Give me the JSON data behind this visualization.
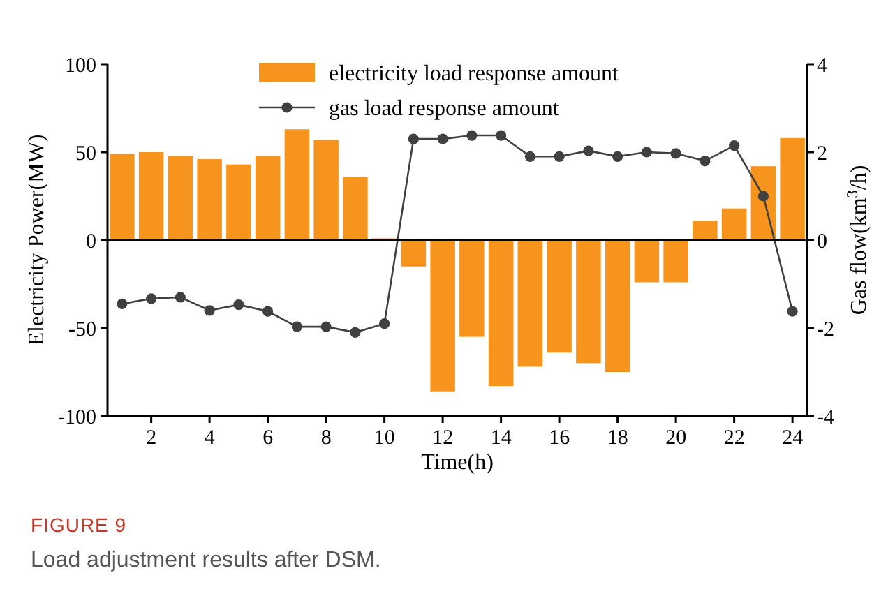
{
  "chart_data": {
    "type": "bar",
    "xlabel": "Time(h)",
    "ylabel": "Electricity Power(MW)",
    "y2label": "Gas flow(km$^{3}$/h)",
    "x": [
      1,
      2,
      3,
      4,
      5,
      6,
      7,
      8,
      9,
      10,
      11,
      12,
      13,
      14,
      15,
      16,
      17,
      18,
      19,
      20,
      21,
      22,
      23,
      24
    ],
    "xlim": [
      0.5,
      24.5
    ],
    "xticks": [
      2,
      4,
      6,
      8,
      10,
      12,
      14,
      16,
      18,
      20,
      22,
      24
    ],
    "ylim": [
      -100,
      100
    ],
    "yticks": [
      -100,
      -50,
      0,
      50,
      100
    ],
    "y2lim": [
      -4,
      4
    ],
    "y2ticks": [
      -4,
      -2,
      0,
      2,
      4
    ],
    "series": [
      {
        "name": "electricity load response amount",
        "color": "#f7941d",
        "values": [
          49,
          50,
          48,
          46,
          43,
          48,
          63,
          57,
          36,
          1,
          -15,
          -86,
          -55,
          -83,
          -72,
          -64,
          -70,
          -75,
          -24,
          -24,
          11,
          18,
          42,
          58
        ]
      },
      {
        "name": "gas load response amount",
        "type": "line",
        "axis": "y2",
        "color": "#404040",
        "values": [
          -1.45,
          -1.33,
          -1.3,
          -1.6,
          -1.47,
          -1.62,
          -1.97,
          -1.97,
          -2.1,
          -1.9,
          2.3,
          2.3,
          2.38,
          2.38,
          1.9,
          1.9,
          2.03,
          1.9,
          2.0,
          1.97,
          1.8,
          2.15,
          1.0,
          -1.62
        ]
      }
    ],
    "marker": "circle",
    "legend": "top",
    "annotations": [
      "FIGURE 9",
      "Load adjustment results after DSM."
    ]
  }
}
